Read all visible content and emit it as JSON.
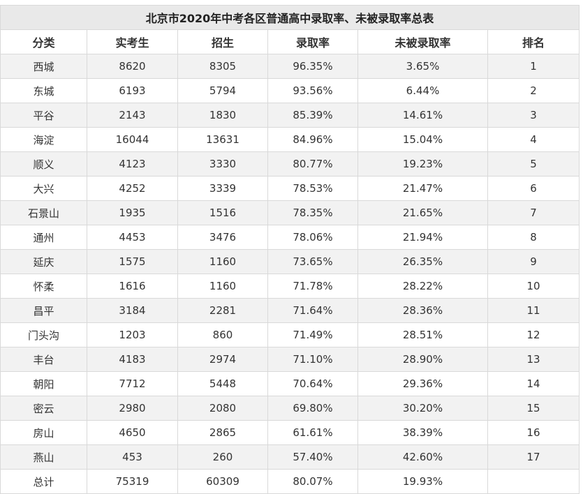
{
  "title": "北京市2020年中考各区普通高中录取率、未被录取率总表",
  "headers": [
    "分类",
    "实考生",
    "招生",
    "录取率",
    "未被录取率",
    "排名"
  ],
  "rows": [
    [
      "西城",
      "8620",
      "8305",
      "96.35%",
      "3.65%",
      "1"
    ],
    [
      "东城",
      "6193",
      "5794",
      "93.56%",
      "6.44%",
      "2"
    ],
    [
      "平谷",
      "2143",
      "1830",
      "85.39%",
      "14.61%",
      "3"
    ],
    [
      "海淀",
      "16044",
      "13631",
      "84.96%",
      "15.04%",
      "4"
    ],
    [
      "顺义",
      "4123",
      "3330",
      "80.77%",
      "19.23%",
      "5"
    ],
    [
      "大兴",
      "4252",
      "3339",
      "78.53%",
      "21.47%",
      "6"
    ],
    [
      "石景山",
      "1935",
      "1516",
      "78.35%",
      "21.65%",
      "7"
    ],
    [
      "通州",
      "4453",
      "3476",
      "78.06%",
      "21.94%",
      "8"
    ],
    [
      "延庆",
      "1575",
      "1160",
      "73.65%",
      "26.35%",
      "9"
    ],
    [
      "怀柔",
      "1616",
      "1160",
      "71.78%",
      "28.22%",
      "10"
    ],
    [
      "昌平",
      "3184",
      "2281",
      "71.64%",
      "28.36%",
      "11"
    ],
    [
      "门头沟",
      "1203",
      "860",
      "71.49%",
      "28.51%",
      "12"
    ],
    [
      "丰台",
      "4183",
      "2974",
      "71.10%",
      "28.90%",
      "13"
    ],
    [
      "朝阳",
      "7712",
      "5448",
      "70.64%",
      "29.36%",
      "14"
    ],
    [
      "密云",
      "2980",
      "2080",
      "69.80%",
      "30.20%",
      "15"
    ],
    [
      "房山",
      "4650",
      "2865",
      "61.61%",
      "38.39%",
      "16"
    ],
    [
      "燕山",
      "453",
      "260",
      "57.40%",
      "42.60%",
      "17"
    ],
    [
      "总计",
      "75319",
      "60309",
      "80.07%",
      "19.93%",
      ""
    ]
  ]
}
